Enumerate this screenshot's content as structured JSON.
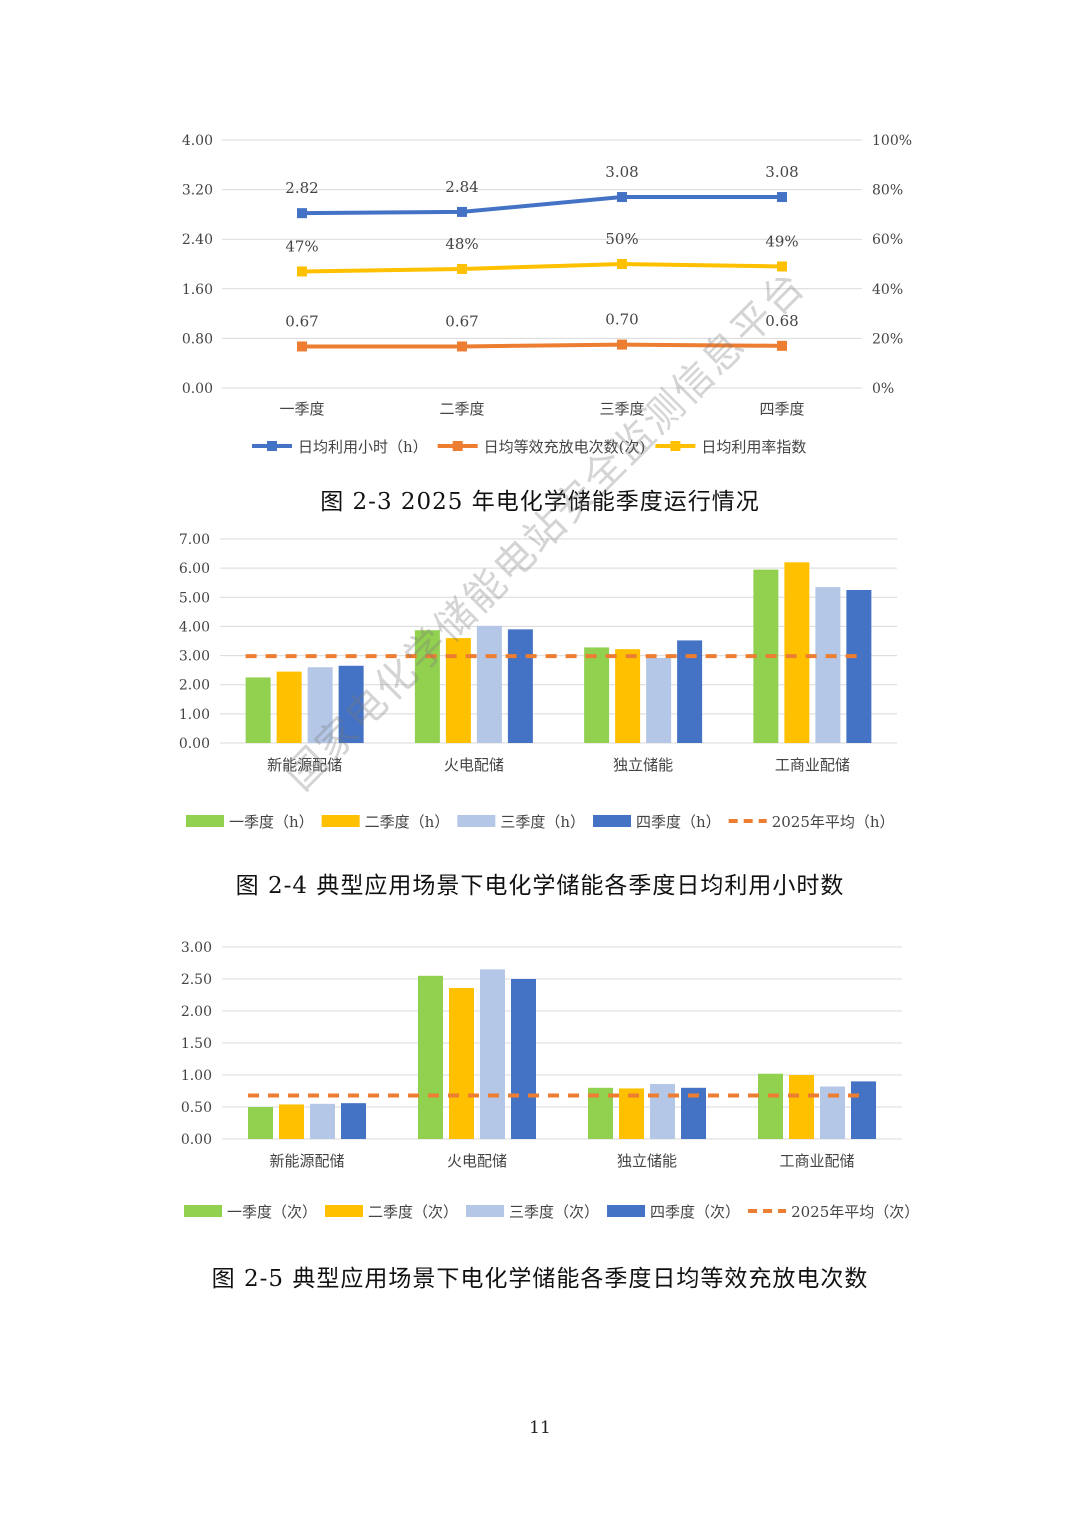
{
  "colors": {
    "blue": "#4472c4",
    "orange": "#ed7d31",
    "yellow": "#ffc000",
    "green": "#92d050",
    "lightblue": "#b4c7e7",
    "grid": "#d9d9d9"
  },
  "captions": {
    "fig3": "图 2-3 2025 年电化学储能季度运行情况",
    "fig4": "图 2-4 典型应用场景下电化学储能各季度日均利用小时数",
    "fig5": "图 2-5 典型应用场景下电化学储能各季度日均等效充放电次数"
  },
  "watermark": "国家电化学储能电站安全监测信息平台",
  "page_number": "11",
  "chart_data": [
    {
      "type": "line",
      "categories": [
        "一季度",
        "二季度",
        "三季度",
        "四季度"
      ],
      "y_ticks": [
        "0.00",
        "0.80",
        "1.60",
        "2.40",
        "3.20",
        "4.00"
      ],
      "ylim": [
        0,
        4
      ],
      "y2_ticks": [
        "0%",
        "20%",
        "40%",
        "60%",
        "80%",
        "100%"
      ],
      "y2lim": [
        0,
        100
      ],
      "series": [
        {
          "name": "日均利用小时（h）",
          "axis": "left",
          "color": "#4472c4",
          "values": [
            2.82,
            2.84,
            3.08,
            3.08
          ],
          "labels": [
            "2.82",
            "2.84",
            "3.08",
            "3.08"
          ]
        },
        {
          "name": "日均等效充放电次数(次)",
          "axis": "left",
          "color": "#ed7d31",
          "values": [
            0.67,
            0.67,
            0.7,
            0.68
          ],
          "labels": [
            "0.67",
            "0.67",
            "0.70",
            "0.68"
          ]
        },
        {
          "name": "日均利用率指数",
          "axis": "right",
          "color": "#ffc000",
          "values": [
            47,
            48,
            50,
            49
          ],
          "labels": [
            "47%",
            "48%",
            "50%",
            "49%"
          ]
        }
      ],
      "legend": "bottom"
    },
    {
      "type": "bar",
      "categories": [
        "新能源配储",
        "火电配储",
        "独立储能",
        "工商业配储"
      ],
      "y_ticks": [
        "0.00",
        "1.00",
        "2.00",
        "3.00",
        "4.00",
        "5.00",
        "6.00",
        "7.00"
      ],
      "ylim": [
        0,
        7
      ],
      "series": [
        {
          "name": "一季度（h）",
          "color": "#92d050",
          "values": [
            2.25,
            3.87,
            3.28,
            5.95
          ]
        },
        {
          "name": "二季度（h）",
          "color": "#ffc000",
          "values": [
            2.45,
            3.6,
            3.22,
            6.2
          ]
        },
        {
          "name": "三季度（h）",
          "color": "#b4c7e7",
          "values": [
            2.6,
            4.02,
            2.92,
            5.35
          ]
        },
        {
          "name": "四季度（h）",
          "color": "#4472c4",
          "values": [
            2.65,
            3.9,
            3.52,
            5.25
          ]
        }
      ],
      "average": {
        "name": "2025年平均（h）",
        "color": "#ed7d31",
        "value": 2.98
      },
      "legend": "bottom"
    },
    {
      "type": "bar",
      "categories": [
        "新能源配储",
        "火电配储",
        "独立储能",
        "工商业配储"
      ],
      "y_ticks": [
        "0.00",
        "0.50",
        "1.00",
        "1.50",
        "2.00",
        "2.50",
        "3.00"
      ],
      "ylim": [
        0,
        3
      ],
      "series": [
        {
          "name": "一季度（次）",
          "color": "#92d050",
          "values": [
            0.5,
            2.55,
            0.8,
            1.02
          ]
        },
        {
          "name": "二季度（次）",
          "color": "#ffc000",
          "values": [
            0.54,
            2.36,
            0.79,
            1.0
          ]
        },
        {
          "name": "三季度（次）",
          "color": "#b4c7e7",
          "values": [
            0.55,
            2.65,
            0.86,
            0.82
          ]
        },
        {
          "name": "四季度（次）",
          "color": "#4472c4",
          "values": [
            0.56,
            2.5,
            0.8,
            0.9
          ]
        }
      ],
      "average": {
        "name": "2025年平均（次）",
        "color": "#ed7d31",
        "value": 0.68
      },
      "legend": "bottom"
    }
  ]
}
